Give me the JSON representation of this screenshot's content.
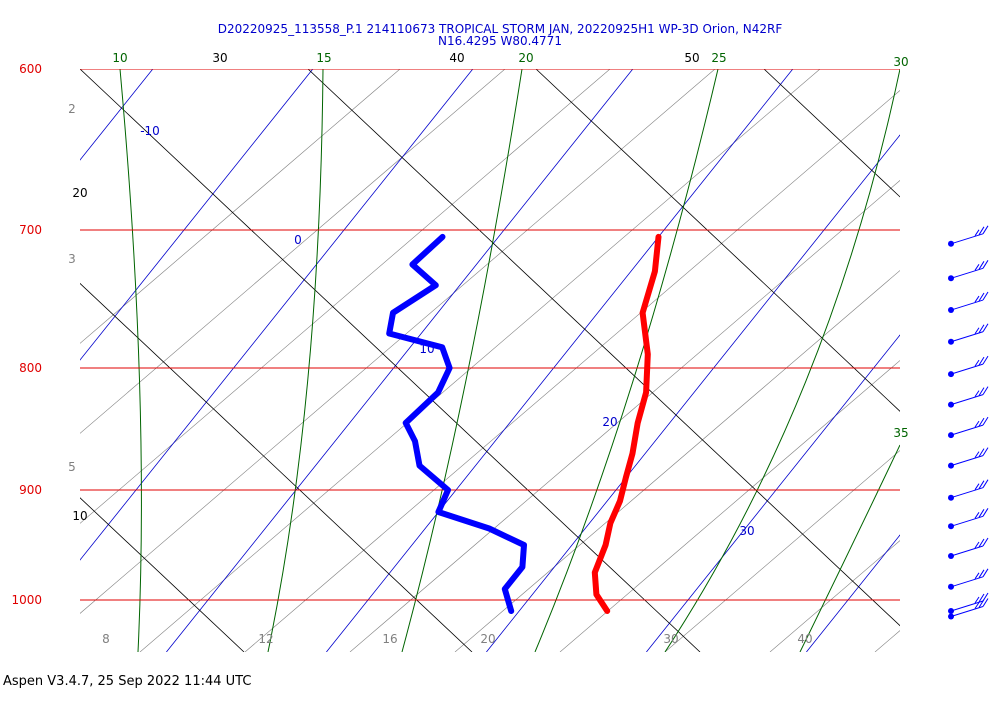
{
  "title_line1": "D20220925_113558_P.1 214110673 TROPICAL STORM JAN, 20220925H1 WP-3D Orion, N42RF",
  "title_line2": "N16.4295 W80.4771",
  "footer": "Aspen V3.4.7, 25 Sep 2022  11:44 UTC",
  "colors": {
    "title": "#0000cc",
    "pressure_lines": "#e00000",
    "pressure_labels": "#e00000",
    "dry_adiabats": "#000000",
    "saturated_adiabats": "#006400",
    "isotherms": "#0000cc",
    "mixing_ratio": "#808080",
    "temperature_profile": "#ff0000",
    "dewpoint_profile": "#0000ff",
    "wind_barbs": "#0000ff"
  },
  "chart_data": {
    "type": "skew-t",
    "pressure_levels": [
      600,
      700,
      800,
      900,
      1000
    ],
    "isotherm_labels": [
      "-10",
      "0",
      "10",
      "20",
      "30"
    ],
    "dry_adiabat_labels": [
      "10",
      "20",
      "30",
      "40",
      "50"
    ],
    "saturated_adiabat_labels": [
      "10",
      "15",
      "20",
      "25",
      "30",
      "35"
    ],
    "mixing_ratio_labels": [
      "2",
      "3",
      "5",
      "8",
      "12",
      "16",
      "20",
      "30",
      "40"
    ],
    "series": [
      {
        "name": "",
        "kind": "temperature",
        "points": [
          {
            "p": 705,
            "t": 10.0
          },
          {
            "p": 730,
            "t": 11.5
          },
          {
            "p": 760,
            "t": 12.8
          },
          {
            "p": 790,
            "t": 15.2
          },
          {
            "p": 820,
            "t": 17.0
          },
          {
            "p": 845,
            "t": 18.0
          },
          {
            "p": 870,
            "t": 19.2
          },
          {
            "p": 890,
            "t": 20.0
          },
          {
            "p": 910,
            "t": 20.8
          },
          {
            "p": 930,
            "t": 21.3
          },
          {
            "p": 950,
            "t": 22.1
          },
          {
            "p": 975,
            "t": 22.8
          },
          {
            "p": 995,
            "t": 24.0
          },
          {
            "p": 1010,
            "t": 25.5
          }
        ]
      },
      {
        "name": "",
        "kind": "dewpoint",
        "points": [
          {
            "p": 705,
            "t": -3.5
          },
          {
            "p": 725,
            "t": -4.0
          },
          {
            "p": 740,
            "t": -1.5
          },
          {
            "p": 760,
            "t": -2.8
          },
          {
            "p": 775,
            "t": -2.0
          },
          {
            "p": 785,
            "t": 2.0
          },
          {
            "p": 800,
            "t": 3.5
          },
          {
            "p": 820,
            "t": 4.0
          },
          {
            "p": 845,
            "t": 3.5
          },
          {
            "p": 860,
            "t": 5.0
          },
          {
            "p": 880,
            "t": 6.5
          },
          {
            "p": 900,
            "t": 9.5
          },
          {
            "p": 920,
            "t": 10.0
          },
          {
            "p": 935,
            "t": 14.0
          },
          {
            "p": 950,
            "t": 17.0
          },
          {
            "p": 970,
            "t": 18.0
          },
          {
            "p": 990,
            "t": 18.0
          },
          {
            "p": 1010,
            "t": 19.5
          }
        ]
      }
    ],
    "wind_barb_levels": [
      710,
      735,
      758,
      781,
      805,
      830,
      855,
      880,
      907,
      933,
      960,
      988,
      1010,
      1015
    ]
  }
}
